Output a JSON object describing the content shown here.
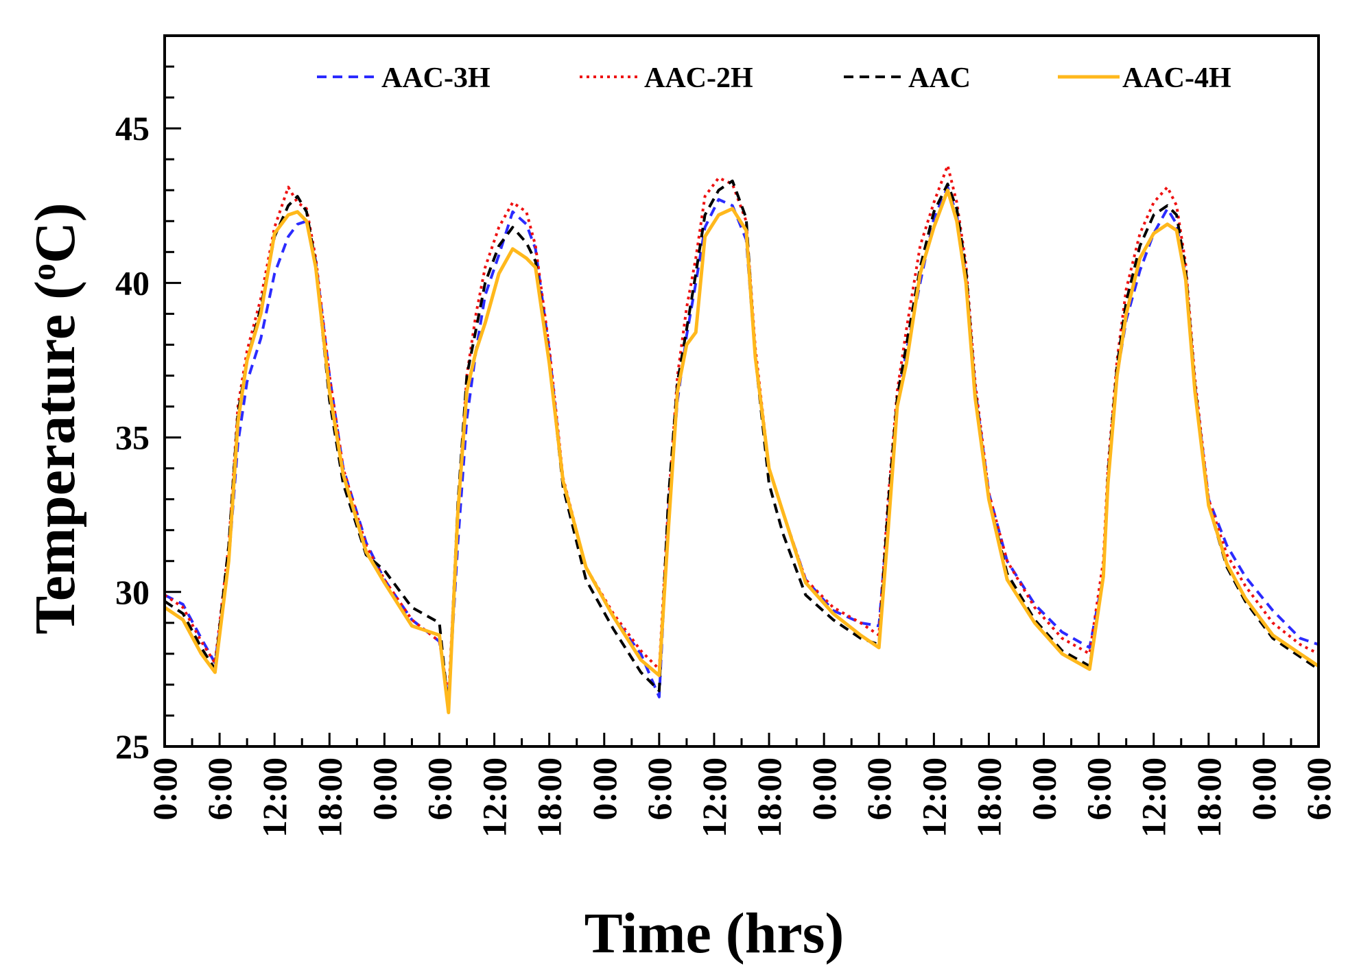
{
  "chart_data": {
    "type": "line",
    "title": "",
    "xlabel": "Time (hrs)",
    "ylabel": "Temperature (oC)",
    "ylabel_parts": [
      "Temperature (",
      "o",
      "C)"
    ],
    "x_unit": "hours elapsed",
    "xlim": [
      0,
      126
    ],
    "ylim": [
      25,
      48
    ],
    "y_ticks": [
      25,
      30,
      35,
      40,
      45
    ],
    "y_tick_labels": [
      "25",
      "30",
      "35",
      "40",
      "45"
    ],
    "x_ticks": [
      0,
      6,
      12,
      18,
      24,
      30,
      36,
      42,
      48,
      54,
      60,
      66,
      72,
      78,
      84,
      90,
      96,
      102,
      108,
      114,
      120,
      126
    ],
    "x_tick_labels": [
      "0:00",
      "6:00",
      "12:00",
      "18:00",
      "0:00",
      "6:00",
      "12:00",
      "18:00",
      "0:00",
      "6:00",
      "12:00",
      "18:00",
      "0:00",
      "6:00",
      "12:00",
      "18:00",
      "0:00",
      "6:00",
      "12:00",
      "18:00",
      "0:00",
      "6:00"
    ],
    "grid": false,
    "legend_position": "top",
    "x": [
      0,
      2,
      4,
      5.5,
      7,
      8,
      9,
      10.5,
      12,
      13.5,
      14.5,
      15.5,
      16.5,
      18,
      19.5,
      22,
      24,
      27,
      30,
      31,
      32,
      33,
      34,
      35,
      36.5,
      38,
      39.5,
      40.5,
      42,
      43.5,
      46,
      49,
      52,
      54,
      55,
      56,
      57,
      58,
      59,
      60.5,
      62,
      63.5,
      64.5,
      66,
      67.5,
      70,
      73,
      76,
      78,
      79,
      80,
      81,
      82.5,
      84,
      85.5,
      86.5,
      87.5,
      88.5,
      90,
      92,
      95,
      98,
      101,
      102.5,
      103,
      104,
      105,
      106.5,
      108,
      109.5,
      110.5,
      111.5,
      112.5,
      114,
      116,
      118,
      121,
      124,
      126
    ],
    "series": [
      {
        "name": "AAC-3H",
        "color": "#2b2bff",
        "style": "dashed",
        "values": [
          29.9,
          29.6,
          28.5,
          27.7,
          31.0,
          34.8,
          36.8,
          38.2,
          40.3,
          41.5,
          41.9,
          42.0,
          40.7,
          37.0,
          34.0,
          31.6,
          30.4,
          29.1,
          28.4,
          26.5,
          31.5,
          35.6,
          37.8,
          39.6,
          40.9,
          42.3,
          41.9,
          41.1,
          37.8,
          33.6,
          30.8,
          29.2,
          28.0,
          26.6,
          32.5,
          36.2,
          38.3,
          40.0,
          41.8,
          42.7,
          42.5,
          41.4,
          37.6,
          34.0,
          32.6,
          30.4,
          29.4,
          29.0,
          28.9,
          32.5,
          36.0,
          37.8,
          40.0,
          42.1,
          43.1,
          42.2,
          40.2,
          36.6,
          33.2,
          31.0,
          29.6,
          28.7,
          28.2,
          30.5,
          33.5,
          37.0,
          38.8,
          40.4,
          41.6,
          42.4,
          41.9,
          40.3,
          36.7,
          33.0,
          31.5,
          30.5,
          29.4,
          28.5,
          28.3
        ]
      },
      {
        "name": "AAC-2H",
        "color": "#ee1111",
        "style": "dotted",
        "values": [
          29.9,
          29.5,
          28.4,
          27.7,
          31.5,
          36.0,
          37.8,
          39.5,
          41.8,
          43.1,
          42.6,
          42.4,
          40.8,
          37.0,
          34.0,
          31.5,
          30.4,
          29.1,
          28.4,
          26.6,
          32.5,
          37.0,
          39.0,
          40.5,
          41.8,
          42.6,
          42.3,
          41.2,
          37.9,
          33.7,
          30.8,
          29.3,
          28.1,
          27.5,
          32.8,
          37.0,
          39.2,
          40.8,
          42.8,
          43.4,
          43.2,
          42.0,
          37.9,
          34.0,
          32.6,
          30.4,
          29.5,
          29.0,
          28.6,
          33.0,
          36.5,
          38.5,
          41.2,
          42.6,
          43.8,
          42.6,
          40.6,
          36.8,
          33.2,
          31.0,
          29.5,
          28.5,
          28.0,
          31.0,
          34.0,
          37.5,
          39.8,
          41.6,
          42.6,
          43.1,
          42.5,
          40.6,
          36.9,
          33.0,
          31.2,
          30.2,
          29.0,
          28.3,
          28.0
        ]
      },
      {
        "name": "AAC",
        "color": "#000000",
        "style": "dashed",
        "values": [
          29.7,
          29.3,
          28.2,
          27.5,
          31.5,
          35.8,
          37.5,
          39.2,
          41.5,
          42.5,
          42.8,
          42.3,
          40.6,
          36.2,
          33.5,
          31.2,
          30.7,
          29.5,
          29.0,
          26.2,
          32.8,
          37.0,
          38.5,
          40.0,
          41.2,
          41.8,
          41.3,
          40.7,
          37.5,
          33.4,
          30.4,
          28.8,
          27.4,
          26.8,
          33.0,
          36.8,
          38.5,
          40.3,
          42.2,
          43.0,
          43.3,
          42.1,
          37.6,
          33.5,
          31.9,
          29.9,
          29.1,
          28.5,
          28.3,
          32.8,
          36.3,
          38.0,
          40.5,
          42.3,
          43.2,
          42.4,
          40.4,
          36.5,
          33.0,
          30.6,
          29.1,
          28.1,
          27.6,
          30.5,
          33.8,
          37.3,
          39.4,
          41.2,
          42.2,
          42.5,
          42.2,
          40.4,
          36.7,
          32.8,
          30.8,
          29.7,
          28.5,
          27.9,
          27.5
        ]
      },
      {
        "name": "AAC-4H",
        "color": "#ffb81c",
        "style": "solid",
        "values": [
          29.5,
          29.1,
          28.0,
          27.4,
          31.0,
          35.5,
          37.5,
          39.0,
          41.6,
          42.2,
          42.3,
          42.0,
          40.5,
          36.5,
          33.8,
          31.3,
          30.3,
          28.9,
          28.6,
          26.1,
          32.5,
          36.5,
          37.8,
          38.7,
          40.3,
          41.1,
          40.8,
          40.5,
          37.4,
          33.6,
          30.8,
          29.2,
          27.8,
          27.3,
          32.0,
          36.5,
          38.0,
          38.4,
          41.5,
          42.2,
          42.4,
          41.7,
          37.6,
          34.0,
          32.6,
          30.3,
          29.3,
          28.6,
          28.2,
          32.0,
          36.0,
          37.4,
          40.3,
          41.8,
          43.0,
          42.0,
          40.0,
          36.3,
          33.0,
          30.4,
          29.0,
          28.0,
          27.5,
          30.5,
          33.5,
          37.0,
          39.0,
          40.8,
          41.6,
          41.9,
          41.7,
          40.1,
          36.5,
          32.8,
          30.9,
          29.8,
          28.6,
          28.0,
          27.6
        ]
      }
    ]
  }
}
